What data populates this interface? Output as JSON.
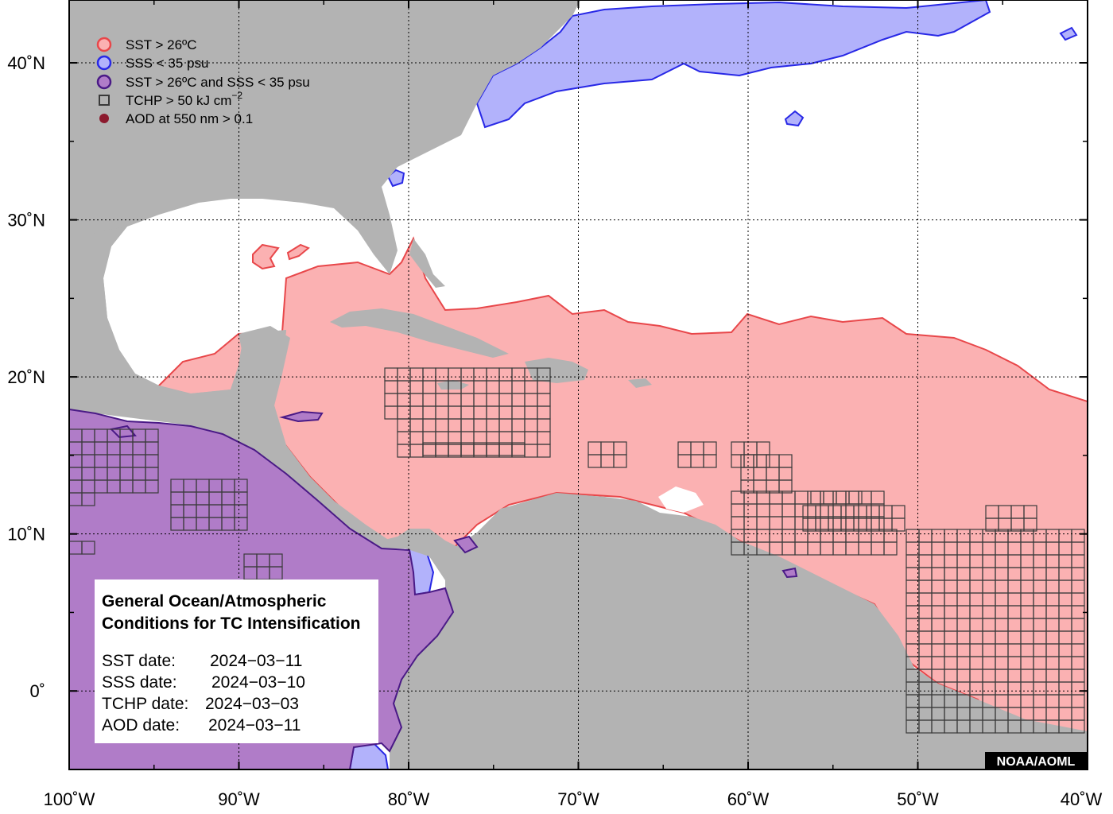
{
  "colors": {
    "land": "#b3b3b3",
    "ocean": "#ffffff",
    "sst": "#fbb1b2",
    "sst_edge": "#e8474a",
    "sss": "#b2b2fb",
    "sss_edge": "#2828e6",
    "both": "#b07cc8",
    "both_edge": "#4a1a86",
    "tchp_grid": "#3a3a3a",
    "aod": "#8c1a2e",
    "frame": "#000000"
  },
  "axes": {
    "x_ticks": [
      {
        "lon": -100,
        "label": "100˚W"
      },
      {
        "lon": -90,
        "label": "90˚W"
      },
      {
        "lon": -80,
        "label": "80˚W"
      },
      {
        "lon": -70,
        "label": "70˚W"
      },
      {
        "lon": -60,
        "label": "60˚W"
      },
      {
        "lon": -50,
        "label": "50˚W"
      },
      {
        "lon": -40,
        "label": "40˚W"
      }
    ],
    "y_ticks": [
      {
        "lat": 40,
        "label": "40˚N"
      },
      {
        "lat": 30,
        "label": "30˚N"
      },
      {
        "lat": 20,
        "label": "20˚N"
      },
      {
        "lat": 10,
        "label": "10˚N"
      },
      {
        "lat": 0,
        "label": "0˚"
      }
    ],
    "lon_range": [
      -100,
      -40
    ],
    "lat_range": [
      -5,
      44
    ],
    "grid": true
  },
  "legend": {
    "items": [
      {
        "label": "SST > 26ºC",
        "symbol": "circle",
        "color_key": "sst"
      },
      {
        "label": "SSS < 35 psu",
        "symbol": "circle",
        "color_key": "sss"
      },
      {
        "label": "SST > 26ºC and SSS < 35 psu",
        "symbol": "circle",
        "color_key": "both"
      },
      {
        "label": "TCHP > 50 kJ cm",
        "label_sup": "−2",
        "symbol": "square",
        "color_key": "tchp_grid"
      },
      {
        "label": "AOD at 550 nm > 0.1",
        "symbol": "dot",
        "color_key": "aod"
      }
    ]
  },
  "info_box": {
    "title_line1": "General Ocean/Atmospheric",
    "title_line2": "Conditions for TC Intensification",
    "dates": [
      {
        "label": "SST date:",
        "value": "2024−03−11"
      },
      {
        "label": "SSS date:",
        "value": "2024−03−10"
      },
      {
        "label": "TCHP date:",
        "value": "2024−03−03"
      },
      {
        "label": "AOD date:",
        "value": "2024−03−11"
      }
    ]
  },
  "credit": "NOAA/AOML"
}
